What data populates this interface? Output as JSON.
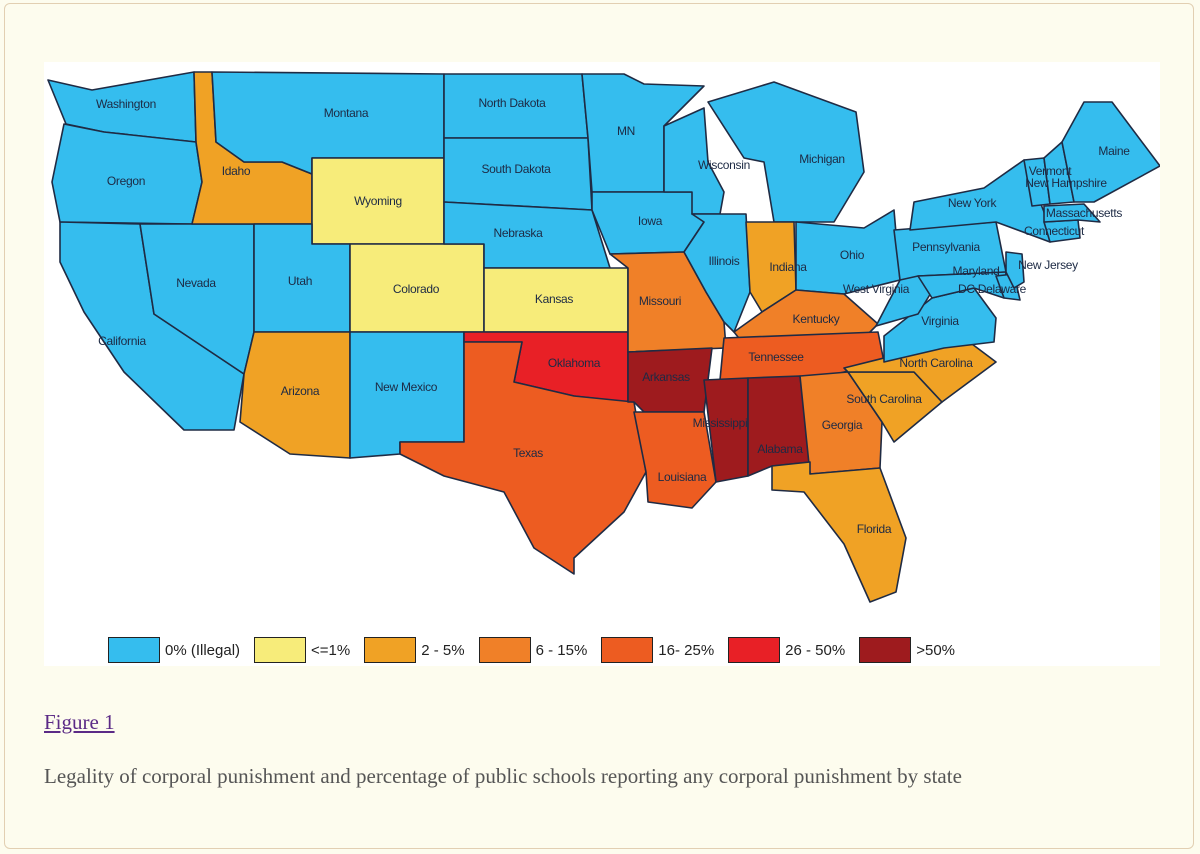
{
  "figure": {
    "link_label": "Figure 1",
    "caption": "Legality of corporal punishment and percentage of public schools reporting any corporal punishment by state"
  },
  "colors": {
    "illegal": "#35bdee",
    "le1": "#f7ec7a",
    "p2_5": "#f0a225",
    "p6_15": "#f08028",
    "p16_25": "#ed5c21",
    "p26_50": "#e82026",
    "gt50": "#9e1b1e",
    "border": "#1f2b44",
    "panel_bg": "#ffffff"
  },
  "legend": [
    {
      "label": "0% (Illegal)",
      "color": "#35bdee"
    },
    {
      "label": "<=1%",
      "color": "#f7ec7a"
    },
    {
      "label": "2 - 5%",
      "color": "#f0a225"
    },
    {
      "label": "6 - 15%",
      "color": "#f08028"
    },
    {
      "label": "16- 25%",
      "color": "#ed5c21"
    },
    {
      "label": "26 - 50%",
      "color": "#e82026"
    },
    {
      "label": ">50%",
      "color": "#9e1b1e"
    }
  ],
  "states": [
    {
      "name": "Washington",
      "category": "illegal"
    },
    {
      "name": "Oregon",
      "category": "illegal"
    },
    {
      "name": "California",
      "category": "illegal"
    },
    {
      "name": "Nevada",
      "category": "illegal"
    },
    {
      "name": "Idaho",
      "category": "p2_5"
    },
    {
      "name": "Montana",
      "category": "illegal"
    },
    {
      "name": "Wyoming",
      "category": "le1"
    },
    {
      "name": "Utah",
      "category": "illegal"
    },
    {
      "name": "Colorado",
      "category": "le1"
    },
    {
      "name": "Arizona",
      "category": "p2_5"
    },
    {
      "name": "New Mexico",
      "category": "illegal"
    },
    {
      "name": "North Dakota",
      "category": "illegal"
    },
    {
      "name": "South Dakota",
      "category": "illegal"
    },
    {
      "name": "Nebraska",
      "category": "illegal"
    },
    {
      "name": "Kansas",
      "category": "le1"
    },
    {
      "name": "Oklahoma",
      "category": "p26_50"
    },
    {
      "name": "Texas",
      "category": "p16_25"
    },
    {
      "name": "MN",
      "category": "illegal"
    },
    {
      "name": "Iowa",
      "category": "illegal"
    },
    {
      "name": "Missouri",
      "category": "p6_15"
    },
    {
      "name": "Arkansas",
      "category": "gt50"
    },
    {
      "name": "Louisiana",
      "category": "p16_25"
    },
    {
      "name": "Wisconsin",
      "category": "illegal"
    },
    {
      "name": "Illinois",
      "category": "illegal"
    },
    {
      "name": "Michigan",
      "category": "illegal"
    },
    {
      "name": "Indiana",
      "category": "p2_5"
    },
    {
      "name": "Ohio",
      "category": "illegal"
    },
    {
      "name": "Kentucky",
      "category": "p6_15"
    },
    {
      "name": "Tennessee",
      "category": "p16_25"
    },
    {
      "name": "Mississippi",
      "category": "gt50"
    },
    {
      "name": "Alabama",
      "category": "gt50"
    },
    {
      "name": "Georgia",
      "category": "p6_15"
    },
    {
      "name": "Florida",
      "category": "p2_5"
    },
    {
      "name": "South Carolina",
      "category": "p2_5"
    },
    {
      "name": "North Carolina",
      "category": "p2_5"
    },
    {
      "name": "Virginia",
      "category": "illegal"
    },
    {
      "name": "West Virginia",
      "category": "illegal"
    },
    {
      "name": "Pennsylvania",
      "category": "illegal"
    },
    {
      "name": "New York",
      "category": "illegal"
    },
    {
      "name": "Maryland",
      "category": "illegal"
    },
    {
      "name": "DC Delaware",
      "category": "illegal"
    },
    {
      "name": "New Jersey",
      "category": "illegal"
    },
    {
      "name": "Connecticut",
      "category": "illegal"
    },
    {
      "name": "Massachusetts",
      "category": "illegal"
    },
    {
      "name": "Vermont",
      "category": "illegal"
    },
    {
      "name": "New Hampshire",
      "category": "illegal"
    },
    {
      "name": "Maine",
      "category": "illegal"
    }
  ]
}
